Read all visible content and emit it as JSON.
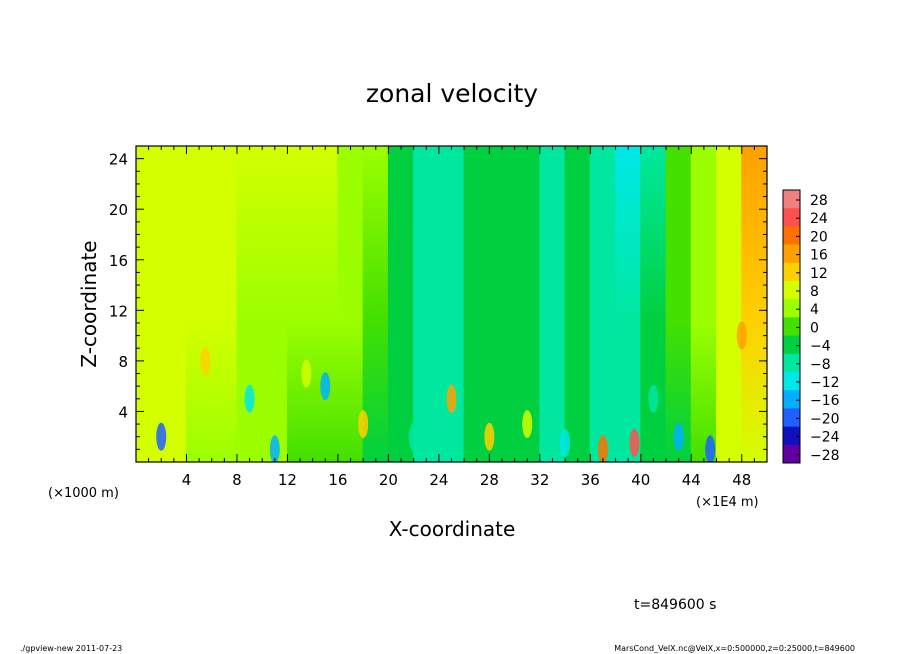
{
  "chart_data": {
    "type": "heatmap",
    "title": "zonal velocity",
    "xlabel": "X-coordinate",
    "ylabel": "Z-coordinate",
    "x_unit_left": "(×1000 m)",
    "x_unit_right": "(×1E4 m)",
    "xlim": [
      0,
      50
    ],
    "ylim": [
      0,
      25
    ],
    "xticks": [
      4,
      8,
      12,
      16,
      20,
      24,
      28,
      32,
      36,
      40,
      44,
      48
    ],
    "yticks": [
      4,
      8,
      12,
      16,
      20,
      24
    ],
    "colorbar": {
      "levels": [
        -28,
        -24,
        -20,
        -16,
        -12,
        -8,
        -4,
        0,
        4,
        8,
        12,
        16,
        20,
        24,
        28
      ],
      "labels": [
        "28",
        "24",
        "20",
        "16",
        "12",
        "8",
        "4",
        "0",
        "−4",
        "−8",
        "−12",
        "−16",
        "−20",
        "−24",
        "−28"
      ],
      "colors": [
        "#f08080",
        "#ff5050",
        "#ff7000",
        "#ffa000",
        "#ffd000",
        "#d4ff00",
        "#9cff00",
        "#44e000",
        "#00d040",
        "#00e8a0",
        "#00e8e8",
        "#00b0ff",
        "#2060ff",
        "#1010c0",
        "#6000a0"
      ]
    },
    "columns": [
      {
        "x": 1,
        "top": 9,
        "bottom": 7
      },
      {
        "x": 3,
        "top": 9,
        "bottom": 6
      },
      {
        "x": 5,
        "top": 9,
        "bottom": 5
      },
      {
        "x": 7,
        "top": 9,
        "bottom": 4
      },
      {
        "x": 9,
        "top": 8,
        "bottom": 3
      },
      {
        "x": 11,
        "top": 8,
        "bottom": 2
      },
      {
        "x": 13,
        "top": 7,
        "bottom": 1
      },
      {
        "x": 15,
        "top": 7,
        "bottom": 0
      },
      {
        "x": 17,
        "top": 5,
        "bottom": 0
      },
      {
        "x": 19,
        "top": 3,
        "bottom": -2
      },
      {
        "x": 21,
        "top": -2,
        "bottom": -4
      },
      {
        "x": 23,
        "top": -6,
        "bottom": -6
      },
      {
        "x": 25,
        "top": -9,
        "bottom": -8
      },
      {
        "x": 27,
        "top": -5,
        "bottom": -5
      },
      {
        "x": 29,
        "top": -3,
        "bottom": -3
      },
      {
        "x": 31,
        "top": -4,
        "bottom": -4
      },
      {
        "x": 33,
        "top": -6,
        "bottom": -6
      },
      {
        "x": 35,
        "top": -5,
        "bottom": -5
      },
      {
        "x": 37,
        "top": -8,
        "bottom": -7
      },
      {
        "x": 39,
        "top": -10,
        "bottom": -8
      },
      {
        "x": 41,
        "top": -6,
        "bottom": -5
      },
      {
        "x": 43,
        "top": -1,
        "bottom": -2
      },
      {
        "x": 45,
        "top": 3,
        "bottom": 1
      },
      {
        "x": 47,
        "top": 9,
        "bottom": 6
      },
      {
        "x": 49,
        "top": 14,
        "bottom": 8
      }
    ],
    "near_surface_anomalies": [
      {
        "x": 2,
        "z": 2,
        "v": -18
      },
      {
        "x": 5.5,
        "z": 8,
        "v": 12
      },
      {
        "x": 9,
        "z": 5,
        "v": -12
      },
      {
        "x": 11,
        "z": 1,
        "v": -16
      },
      {
        "x": 13.5,
        "z": 7,
        "v": 8
      },
      {
        "x": 15,
        "z": 6,
        "v": -14
      },
      {
        "x": 18,
        "z": 3,
        "v": 12
      },
      {
        "x": 22,
        "z": 2,
        "v": -8
      },
      {
        "x": 25,
        "z": 5,
        "v": 16
      },
      {
        "x": 28,
        "z": 2,
        "v": 12
      },
      {
        "x": 31,
        "z": 3,
        "v": 8
      },
      {
        "x": 34,
        "z": 1.5,
        "v": -12
      },
      {
        "x": 37,
        "z": 1,
        "v": 20
      },
      {
        "x": 39.5,
        "z": 1.5,
        "v": 24
      },
      {
        "x": 41,
        "z": 5,
        "v": -8
      },
      {
        "x": 43,
        "z": 2,
        "v": -16
      },
      {
        "x": 45.5,
        "z": 1,
        "v": -20
      },
      {
        "x": 48,
        "z": 10,
        "v": 16
      }
    ]
  },
  "footer": {
    "time_label": "t=849600 s",
    "program_label": "./gpview-new   2011-07-23",
    "source_label": "MarsCond_VelX.nc@VelX,x=0:500000,z=0:25000,t=849600"
  }
}
